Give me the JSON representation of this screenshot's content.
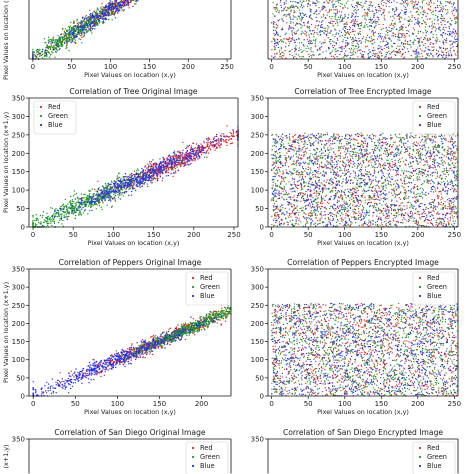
{
  "chart_data": [
    {
      "type": "scatter",
      "title": "",
      "xlabel": "Pixel Values on location (x,y)",
      "ylabel": "Pixel Values on location (x+1,y)",
      "xlim": [
        -5,
        255
      ],
      "ylim": [
        0,
        350
      ],
      "xticks": [
        0,
        50,
        100,
        150,
        200,
        250
      ],
      "yticks": [],
      "legend": {
        "show": false,
        "placement": "top-right"
      },
      "series": [
        {
          "name": "Red",
          "color": "#e8231a",
          "kind": "correlated",
          "center": 120,
          "spread": 55,
          "noise": 8
        },
        {
          "name": "Green",
          "color": "#1a9a1a",
          "kind": "correlated",
          "center": 60,
          "spread": 40,
          "noise": 9
        },
        {
          "name": "Blue",
          "color": "#2233ee",
          "kind": "correlated",
          "center": 125,
          "spread": 55,
          "noise": 8
        }
      ]
    },
    {
      "type": "scatter",
      "title": "",
      "xlabel": "Pixel Values on location (x,y)",
      "ylabel": "",
      "xlim": [
        -5,
        255
      ],
      "ylim": [
        0,
        350
      ],
      "xticks": [
        0,
        50,
        100,
        150,
        200,
        250
      ],
      "yticks": [],
      "legend": {
        "show": false,
        "placement": "top-right"
      },
      "series": [
        {
          "name": "Red",
          "color": "#e8231a",
          "kind": "uniform",
          "range": [
            0,
            255
          ]
        },
        {
          "name": "Green",
          "color": "#1a9a1a",
          "kind": "uniform",
          "range": [
            0,
            255
          ]
        },
        {
          "name": "Blue",
          "color": "#2233ee",
          "kind": "uniform",
          "range": [
            0,
            255
          ]
        }
      ]
    },
    {
      "type": "scatter",
      "title": "Correlation of Tree Original Image",
      "xlabel": "Pixel Values on location (x,y)",
      "ylabel": "Pixel Values on location (x+1,y)",
      "xlim": [
        -5,
        255
      ],
      "ylim": [
        0,
        350
      ],
      "xticks": [
        0,
        50,
        100,
        150,
        200,
        250
      ],
      "yticks": [
        0,
        50,
        100,
        150,
        200,
        250,
        300,
        350
      ],
      "legend": {
        "show": true,
        "placement": "top-left"
      },
      "series": [
        {
          "name": "Red",
          "color": "#e8231a",
          "kind": "correlated",
          "center": 170,
          "spread": 45,
          "noise": 12
        },
        {
          "name": "Green",
          "color": "#1a9a1a",
          "kind": "correlated",
          "center": 70,
          "spread": 45,
          "noise": 14
        },
        {
          "name": "Blue",
          "color": "#2233ee",
          "kind": "correlated",
          "center": 140,
          "spread": 50,
          "noise": 12
        }
      ]
    },
    {
      "type": "scatter",
      "title": "Correlation of Tree Encrypted Image",
      "xlabel": "Pixel Values on location (x,y)",
      "ylabel": "",
      "xlim": [
        -5,
        255
      ],
      "ylim": [
        0,
        350
      ],
      "xticks": [
        0,
        50,
        100,
        150,
        200,
        250
      ],
      "yticks": [
        0,
        50,
        100,
        150,
        200,
        250,
        300,
        350
      ],
      "legend": {
        "show": true,
        "placement": "top-right"
      },
      "series": [
        {
          "name": "Red",
          "color": "#e8231a",
          "kind": "uniform",
          "range": [
            0,
            255
          ]
        },
        {
          "name": "Green",
          "color": "#1a9a1a",
          "kind": "uniform",
          "range": [
            0,
            255
          ]
        },
        {
          "name": "Blue",
          "color": "#2233ee",
          "kind": "uniform",
          "range": [
            0,
            255
          ]
        }
      ]
    },
    {
      "type": "scatter",
      "title": "Correlation of Peppers Original Image",
      "xlabel": "Pixel Values on location (x,y)",
      "ylabel": "Pixel Values on location (x+1,y)",
      "xlim": [
        -5,
        235
      ],
      "ylim": [
        0,
        350
      ],
      "xticks": [
        0,
        50,
        100,
        150,
        200
      ],
      "yticks": [
        0,
        50,
        100,
        150,
        200,
        250,
        300,
        350
      ],
      "legend": {
        "show": true,
        "placement": "top-right"
      },
      "series": [
        {
          "name": "Red",
          "color": "#e8231a",
          "kind": "correlated",
          "center": 150,
          "spread": 50,
          "noise": 10
        },
        {
          "name": "Green",
          "color": "#1a9a1a",
          "kind": "correlated",
          "center": 185,
          "spread": 35,
          "noise": 8
        },
        {
          "name": "Blue",
          "color": "#2233ee",
          "kind": "correlated",
          "center": 100,
          "spread": 55,
          "noise": 11
        }
      ]
    },
    {
      "type": "scatter",
      "title": "Correlation of Peppers Encrypted Image",
      "xlabel": "Pixel Values on location (x,y)",
      "ylabel": "",
      "xlim": [
        -5,
        255
      ],
      "ylim": [
        0,
        350
      ],
      "xticks": [
        0,
        50,
        100,
        150,
        200,
        250
      ],
      "yticks": [
        0,
        50,
        100,
        150,
        200,
        250,
        300,
        350
      ],
      "legend": {
        "show": true,
        "placement": "top-right"
      },
      "series": [
        {
          "name": "Red",
          "color": "#e8231a",
          "kind": "uniform",
          "range": [
            0,
            255
          ]
        },
        {
          "name": "Green",
          "color": "#1a9a1a",
          "kind": "uniform",
          "range": [
            0,
            255
          ]
        },
        {
          "name": "Blue",
          "color": "#2233ee",
          "kind": "uniform",
          "range": [
            0,
            255
          ]
        }
      ]
    },
    {
      "type": "scatter",
      "title": "Correlation of San Diego Original Image",
      "xlabel": "",
      "ylabel": "(x+1,y)",
      "xlim": [
        -5,
        255
      ],
      "ylim": [
        0,
        350
      ],
      "xticks": [],
      "yticks": [
        350
      ],
      "legend": {
        "show": true,
        "placement": "top-right"
      },
      "series": [
        {
          "name": "Red",
          "color": "#e8231a",
          "kind": "none"
        },
        {
          "name": "Green",
          "color": "#1a9a1a",
          "kind": "none"
        },
        {
          "name": "Blue",
          "color": "#2233ee",
          "kind": "none"
        }
      ]
    },
    {
      "type": "scatter",
      "title": "Correlation of San Diego Encrypted Image",
      "xlabel": "",
      "ylabel": "",
      "xlim": [
        -5,
        255
      ],
      "ylim": [
        0,
        350
      ],
      "xticks": [],
      "yticks": [
        350
      ],
      "legend": {
        "show": true,
        "placement": "top-right"
      },
      "series": [
        {
          "name": "Red",
          "color": "#e8231a",
          "kind": "none"
        },
        {
          "name": "Green",
          "color": "#1a9a1a",
          "kind": "none"
        },
        {
          "name": "Blue",
          "color": "#2233ee",
          "kind": "none"
        }
      ]
    }
  ]
}
